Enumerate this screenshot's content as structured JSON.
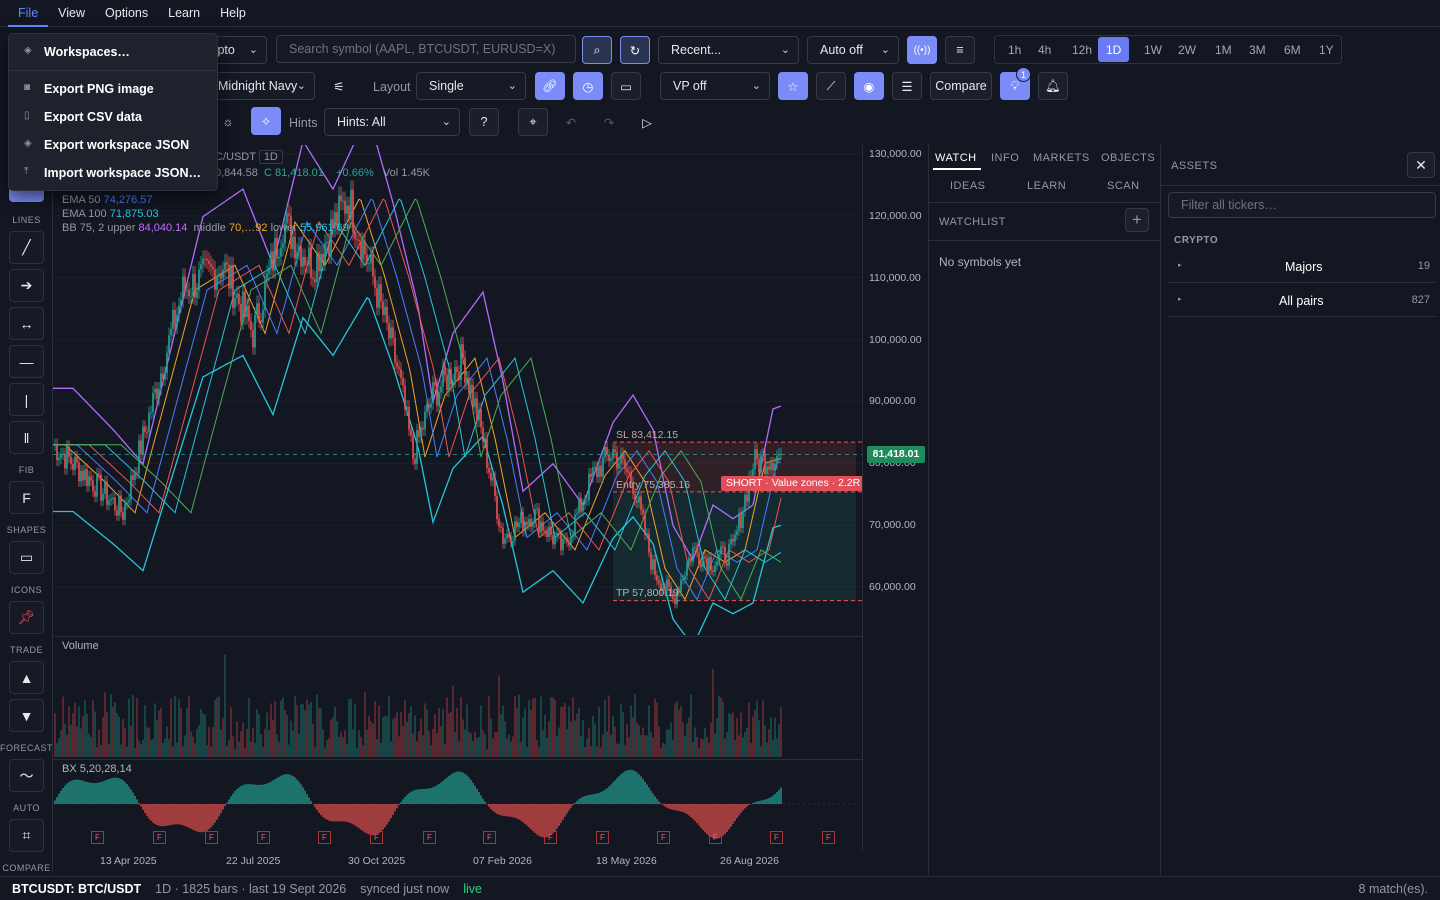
{
  "menubar": {
    "items": [
      "File",
      "View",
      "Options",
      "Learn",
      "Help"
    ]
  },
  "file_menu": {
    "items": [
      "Workspaces…",
      "Export PNG image",
      "Export CSV data",
      "Export workspace JSON",
      "Import workspace JSON…"
    ]
  },
  "toolbar": {
    "market_select": "Crypto",
    "search_placeholder": "Search symbol (AAPL, BTCUSDT, EURUSD=X)",
    "recent": "Recent...",
    "auto": "Auto off",
    "timeframes": [
      "1h",
      "4h",
      "12h",
      "1D",
      "1W",
      "2W",
      "1M",
      "3M",
      "6M",
      "1Y"
    ],
    "active_timeframe": "1D",
    "theme": "Midnight Navy",
    "layout_label": "Layout",
    "layout_value": "Single",
    "vp": "VP off",
    "compare": "Compare",
    "notif_count": "1",
    "hints_label": "Hints",
    "hints_value": "Hints: All"
  },
  "left_toolbar": {
    "sections": [
      "LINES",
      "FIB",
      "SHAPES",
      "ICONS",
      "TRADE",
      "FORECAST",
      "AUTO",
      "COMPARE"
    ],
    "fib_glyph": "F"
  },
  "legend": {
    "symbol": "C/USDT",
    "interval": "1D",
    "open_frag": "0,844.58",
    "close": "C 81,418.01",
    "change": "+0.66%",
    "vol": "Vol 1.45K",
    "ema50_label": "EMA 50",
    "ema50": "74,276.57",
    "ema100_label": "EMA 100",
    "ema100": "71,875.03",
    "bb_label": "BB 75, 2  upper",
    "bb_upper": "84,040.14",
    "bb_mid_label": "middle",
    "bb_mid": "70,…92",
    "bb_low_label": "lower",
    "bb_low": "55,961.69"
  },
  "trade": {
    "sl": "SL 83,412.15",
    "entry": "Entry 75,385.16",
    "tp": "TP 57,800.19",
    "tag": "SHORT · Value zones · 2.2R"
  },
  "price_axis": {
    "labels": [
      "130,000.00",
      "120,000.00",
      "110,000.00",
      "100,000.00",
      "90,000.00",
      "80,000.00",
      "70,000.00",
      "60,000.00"
    ],
    "last": "81,418.01"
  },
  "time_axis": [
    "13 Apr 2025",
    "22 Jul 2025",
    "30 Oct 2025",
    "07 Feb 2026",
    "18 May 2026",
    "26 Aug 2026"
  ],
  "volume_pane": {
    "title": "Volume"
  },
  "osc_pane": {
    "title": "BX 5,20,28,14",
    "marker": "F"
  },
  "status": {
    "symbol": "BTCUSDT: BTC/USDT",
    "info": "1D · 1825 bars · last 19 Sept 2026",
    "sync": "synced just now",
    "live": "live",
    "matches": "8 match(es)."
  },
  "right_panel": {
    "tabs_row1": [
      "WATCH",
      "INFO",
      "MARKETS",
      "OBJECTS"
    ],
    "tabs_row2": [
      "IDEAS",
      "LEARN",
      "SCAN"
    ],
    "watchlist_title": "WATCHLIST",
    "empty": "No symbols yet"
  },
  "assets": {
    "title": "ASSETS",
    "filter_placeholder": "Filter all tickers…",
    "section": "CRYPTO",
    "rows": [
      {
        "name": "Majors",
        "count": "19"
      },
      {
        "name": "All pairs",
        "count": "827"
      }
    ]
  },
  "colors": {
    "accent": "#7b8cf7",
    "up": "#26a69a",
    "down": "#ef5350",
    "bb": "#b36bff",
    "ema_fast": "#f5a623",
    "ema_mid": "#4a7dff",
    "ema_slow": "#26c6da"
  }
}
